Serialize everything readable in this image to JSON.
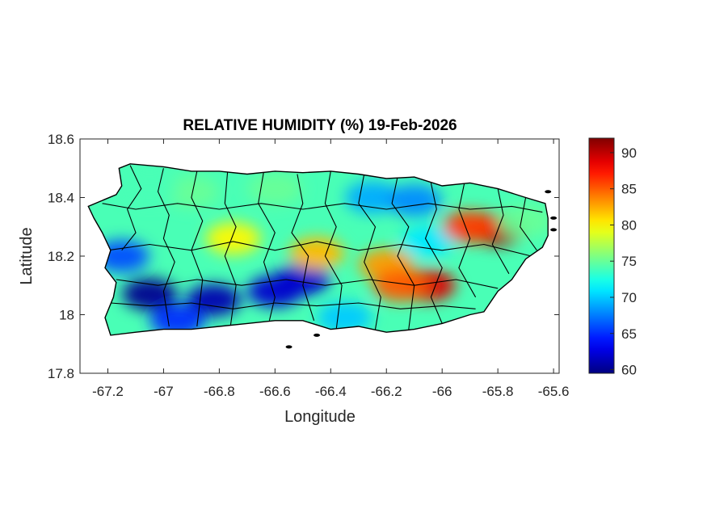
{
  "chart_data": {
    "type": "heatmap",
    "title": "RELATIVE HUMIDITY (%) 19-Feb-2026",
    "xlabel": "Longitude",
    "ylabel": "Latitude",
    "xlim": [
      -67.3,
      -65.58
    ],
    "ylim": [
      17.8,
      18.6
    ],
    "xticks": [
      -67.2,
      -67,
      -66.8,
      -66.6,
      -66.4,
      -66.2,
      -66,
      -65.8,
      -65.6
    ],
    "yticks": [
      17.8,
      18,
      18.2,
      18.4,
      18.6
    ],
    "xtick_labels": [
      "-67.2",
      "-67",
      "-66.8",
      "-66.6",
      "-66.4",
      "-66.2",
      "-66",
      "-65.8",
      "-65.6"
    ],
    "ytick_labels": [
      "17.8",
      "18",
      "18.2",
      "18.4",
      "18.6"
    ],
    "colorbar": {
      "colormap": "jet",
      "limits": [
        59.5,
        92
      ],
      "ticks": [
        60,
        65,
        70,
        75,
        80,
        85,
        90
      ],
      "tick_labels": [
        "60",
        "65",
        "70",
        "75",
        "80",
        "85",
        "90"
      ]
    },
    "grid": false,
    "humidity_features": [
      {
        "lon": -67.05,
        "lat": 18.07,
        "value": 60
      },
      {
        "lon": -66.82,
        "lat": 18.05,
        "value": 61
      },
      {
        "lon": -66.6,
        "lat": 18.08,
        "value": 62
      },
      {
        "lon": -66.5,
        "lat": 18.12,
        "value": 62
      },
      {
        "lon": -67.15,
        "lat": 18.2,
        "value": 66
      },
      {
        "lon": -66.95,
        "lat": 17.98,
        "value": 65
      },
      {
        "lon": -66.25,
        "lat": 18.4,
        "value": 69
      },
      {
        "lon": -66.1,
        "lat": 18.39,
        "value": 68
      },
      {
        "lon": -66.35,
        "lat": 17.99,
        "value": 70
      },
      {
        "lon": -66.05,
        "lat": 18.25,
        "value": 71
      },
      {
        "lon": -66.75,
        "lat": 18.26,
        "value": 80
      },
      {
        "lon": -66.45,
        "lat": 18.21,
        "value": 82
      },
      {
        "lon": -66.2,
        "lat": 18.17,
        "value": 83
      },
      {
        "lon": -66.05,
        "lat": 18.1,
        "value": 89
      },
      {
        "lon": -66.15,
        "lat": 18.1,
        "value": 85
      },
      {
        "lon": -65.8,
        "lat": 18.29,
        "value": 91
      },
      {
        "lon": -65.9,
        "lat": 18.3,
        "value": 86
      },
      {
        "lon": -65.7,
        "lat": 18.32,
        "value": 75
      },
      {
        "lon": -66.9,
        "lat": 18.42,
        "value": 75
      },
      {
        "lon": -67.05,
        "lat": 18.43,
        "value": 74
      },
      {
        "lon": -66.6,
        "lat": 18.43,
        "value": 75
      }
    ],
    "background_value": 74
  }
}
